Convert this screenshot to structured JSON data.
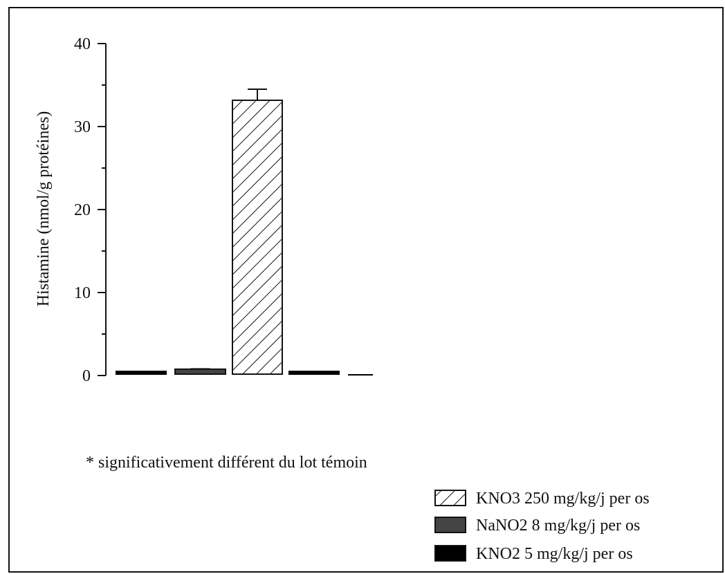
{
  "chart_data": {
    "type": "bar",
    "ylabel": "Histamine (nmol/g protéines)",
    "ylim": [
      0,
      40
    ],
    "yticks": [
      0,
      10,
      20,
      30,
      40
    ],
    "grid": false,
    "bars": [
      {
        "value": 0.3,
        "error": 0,
        "fill": "solid-black"
      },
      {
        "value": 0.6,
        "error": 0.2,
        "fill": "dark-gray"
      },
      {
        "value": 33,
        "error": 1.5,
        "fill": "hatch"
      },
      {
        "value": 0.3,
        "error": 0,
        "fill": "solid-black"
      },
      {
        "value": 0.05,
        "error": 0,
        "fill": "line"
      }
    ],
    "legend": {
      "placement": "bottom-right",
      "entries": [
        {
          "label": "KNO3 250 mg/kg/j per os",
          "swatch": "hatch"
        },
        {
          "label": "NaNO2 8 mg/kg/j per os",
          "swatch": "dark-gray"
        },
        {
          "label": "KNO2 5 mg/kg/j per os",
          "swatch": "solid-black"
        }
      ]
    },
    "annotation": "*  significativement différent du lot témoin"
  },
  "colors": {
    "axis": "#111111",
    "dark_gray": "#444444",
    "black": "#000000",
    "hatch_fill": "#ffffff"
  }
}
